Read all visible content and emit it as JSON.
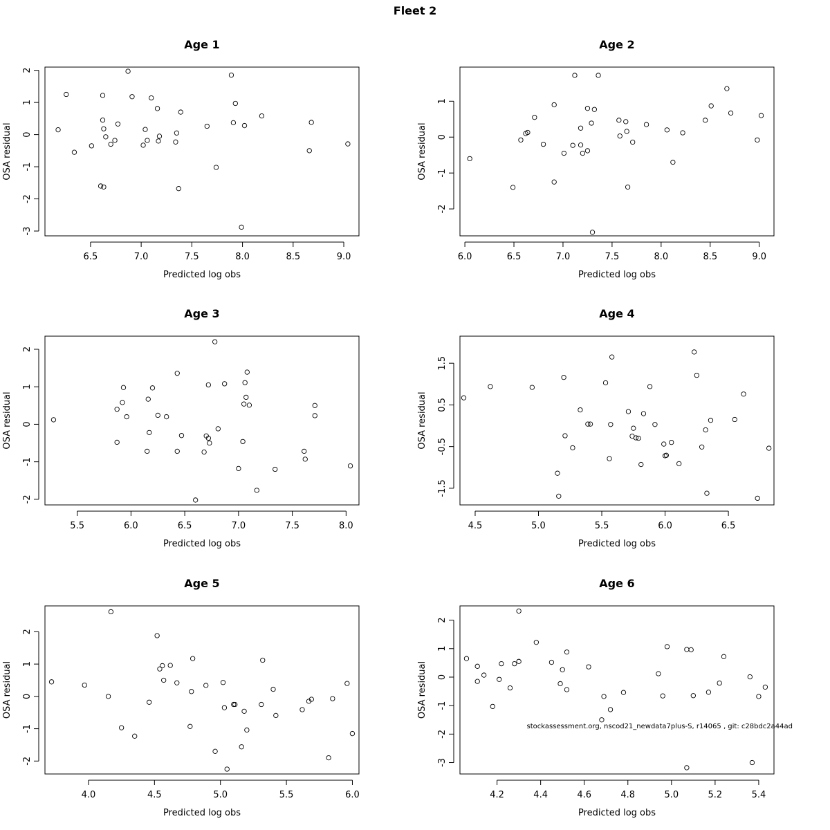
{
  "figure_title": "Fleet 2",
  "footnote": "stockassessment.org, nscod21_newdata7plus-S, r14065 , git: c28bdc2a44ad",
  "chart_data": [
    {
      "type": "scatter",
      "title": "Age 1",
      "xlabel": "Predicted log obs",
      "ylabel": "OSA residual",
      "xlim": [
        6.05,
        9.15
      ],
      "ylim": [
        -3.15,
        2.1
      ],
      "xticks": [
        6.5,
        7.0,
        7.5,
        8.0,
        8.5,
        9.0
      ],
      "xtick_labels": [
        "6.5",
        "7.0",
        "7.5",
        "8.0",
        "8.5",
        "9.0"
      ],
      "yticks": [
        -3,
        -2,
        -1,
        0,
        1,
        2
      ],
      "ytick_labels": [
        "-3",
        "-2",
        "-1",
        "0",
        "1",
        "2"
      ],
      "x": [
        6.18,
        6.26,
        6.34,
        6.51,
        6.6,
        6.62,
        6.62,
        6.63,
        6.63,
        6.65,
        6.7,
        6.74,
        6.77,
        6.87,
        6.91,
        7.02,
        7.04,
        7.06,
        7.1,
        7.16,
        7.17,
        7.18,
        7.34,
        7.35,
        7.37,
        7.39,
        7.65,
        7.74,
        7.89,
        7.91,
        7.93,
        7.99,
        8.02,
        8.19,
        8.66,
        8.68,
        9.04
      ],
      "y": [
        0.15,
        1.25,
        -0.55,
        -0.35,
        -1.6,
        1.22,
        0.45,
        0.18,
        -1.63,
        -0.07,
        -0.3,
        -0.18,
        0.33,
        1.97,
        1.18,
        -0.33,
        0.16,
        -0.18,
        1.14,
        0.81,
        -0.2,
        -0.05,
        -0.23,
        0.05,
        -1.68,
        0.7,
        0.26,
        -1.02,
        1.85,
        0.37,
        0.97,
        -2.88,
        0.28,
        0.58,
        -0.5,
        0.38,
        -0.29
      ]
    },
    {
      "type": "scatter",
      "title": "Age 2",
      "xlabel": "Predicted log obs",
      "ylabel": "OSA residual",
      "xlim": [
        5.95,
        9.15
      ],
      "ylim": [
        -2.75,
        1.95
      ],
      "xticks": [
        6.0,
        6.5,
        7.0,
        7.5,
        8.0,
        8.5,
        9.0
      ],
      "xtick_labels": [
        "6.0",
        "6.5",
        "7.0",
        "7.5",
        "8.0",
        "8.5",
        "9.0"
      ],
      "yticks": [
        -2,
        -1,
        0,
        1
      ],
      "ytick_labels": [
        "-2",
        "-1",
        "0",
        "1"
      ],
      "x": [
        6.05,
        6.49,
        6.57,
        6.62,
        6.64,
        6.71,
        6.8,
        6.91,
        6.91,
        7.01,
        7.1,
        7.12,
        7.18,
        7.18,
        7.2,
        7.25,
        7.25,
        7.29,
        7.3,
        7.32,
        7.36,
        7.57,
        7.58,
        7.64,
        7.65,
        7.66,
        7.71,
        7.85,
        8.06,
        8.12,
        8.22,
        8.45,
        8.51,
        8.67,
        8.71,
        8.98,
        9.02
      ],
      "y": [
        -0.6,
        -1.4,
        -0.08,
        0.1,
        0.13,
        0.55,
        -0.2,
        0.9,
        -1.25,
        -0.45,
        -0.23,
        1.72,
        0.25,
        -0.22,
        -0.45,
        0.8,
        -0.38,
        0.39,
        -2.65,
        0.77,
        1.72,
        0.47,
        0.03,
        0.43,
        0.16,
        -1.39,
        -0.14,
        0.35,
        0.2,
        -0.7,
        0.12,
        0.47,
        0.87,
        1.35,
        0.67,
        -0.08,
        0.6
      ]
    },
    {
      "type": "scatter",
      "title": "Age 3",
      "xlabel": "Predicted log obs",
      "ylabel": "OSA residual",
      "xlim": [
        5.2,
        8.12
      ],
      "ylim": [
        -2.15,
        2.35
      ],
      "xticks": [
        5.5,
        6.0,
        6.5,
        7.0,
        7.5,
        8.0
      ],
      "xtick_labels": [
        "5.5",
        "6.0",
        "6.5",
        "7.0",
        "7.5",
        "8.0"
      ],
      "yticks": [
        -2,
        -1,
        0,
        1,
        2
      ],
      "ytick_labels": [
        "-2",
        "-1",
        "0",
        "1",
        "2"
      ],
      "x": [
        5.28,
        5.87,
        5.87,
        5.92,
        5.93,
        5.96,
        6.15,
        6.16,
        6.17,
        6.2,
        6.25,
        6.33,
        6.43,
        6.43,
        6.47,
        6.6,
        6.68,
        6.7,
        6.72,
        6.72,
        6.73,
        6.78,
        6.81,
        6.87,
        7.0,
        7.04,
        7.05,
        7.06,
        7.07,
        7.08,
        7.1,
        7.17,
        7.34,
        7.61,
        7.62,
        7.71,
        7.71,
        8.04
      ],
      "y": [
        0.12,
        0.4,
        -0.48,
        0.58,
        0.98,
        0.2,
        -0.72,
        0.67,
        -0.22,
        0.97,
        0.24,
        0.2,
        -0.72,
        1.36,
        -0.3,
        -2.02,
        -0.74,
        -0.31,
        -0.37,
        1.05,
        -0.5,
        2.2,
        -0.12,
        1.08,
        -1.18,
        -0.46,
        0.54,
        1.11,
        0.72,
        1.39,
        0.51,
        -1.76,
        -1.2,
        -0.72,
        -0.93,
        0.5,
        0.23,
        -1.11
      ]
    },
    {
      "type": "scatter",
      "title": "Age 4",
      "xlabel": "Predicted log obs",
      "ylabel": "OSA residual",
      "xlim": [
        4.38,
        6.86
      ],
      "ylim": [
        -1.9,
        2.15
      ],
      "xticks": [
        4.5,
        5.0,
        5.5,
        6.0,
        6.5
      ],
      "xtick_labels": [
        "4.5",
        "5.0",
        "5.5",
        "6.0",
        "6.5"
      ],
      "yticks": [
        -1.5,
        -0.5,
        0.5,
        1.5
      ],
      "ytick_labels": [
        "-1.5",
        "-0.5",
        "0.5",
        "1.5"
      ],
      "x": [
        4.41,
        4.62,
        4.95,
        5.15,
        5.16,
        5.2,
        5.21,
        5.27,
        5.33,
        5.39,
        5.41,
        5.53,
        5.56,
        5.57,
        5.58,
        5.71,
        5.74,
        5.75,
        5.77,
        5.79,
        5.81,
        5.83,
        5.88,
        5.92,
        5.99,
        6.0,
        6.01,
        6.05,
        6.11,
        6.23,
        6.25,
        6.29,
        6.32,
        6.33,
        6.36,
        6.55,
        6.62,
        6.73,
        6.82
      ],
      "y": [
        0.67,
        0.94,
        0.92,
        -1.14,
        -1.69,
        1.16,
        -0.24,
        -0.53,
        0.38,
        0.04,
        0.04,
        1.03,
        -0.79,
        0.03,
        1.65,
        0.34,
        -0.25,
        -0.06,
        -0.29,
        -0.3,
        -0.93,
        0.29,
        0.94,
        0.03,
        -0.44,
        -0.72,
        -0.71,
        -0.4,
        -0.91,
        1.77,
        1.21,
        -0.51,
        -0.1,
        -1.62,
        0.13,
        0.15,
        0.76,
        -1.74,
        -0.54
      ]
    },
    {
      "type": "scatter",
      "title": "Age 5",
      "xlabel": "Predicted log obs",
      "ylabel": "OSA residual",
      "xlim": [
        3.67,
        6.05
      ],
      "ylim": [
        -2.4,
        2.8
      ],
      "xticks": [
        4.0,
        4.5,
        5.0,
        5.5,
        6.0
      ],
      "xtick_labels": [
        "4.0",
        "4.5",
        "5.0",
        "5.5",
        "6.0"
      ],
      "yticks": [
        -2,
        -1,
        0,
        1,
        2
      ],
      "ytick_labels": [
        "-2",
        "-1",
        "0",
        "1",
        "2"
      ],
      "x": [
        3.72,
        3.97,
        4.15,
        4.17,
        4.25,
        4.35,
        4.46,
        4.52,
        4.54,
        4.56,
        4.57,
        4.62,
        4.67,
        4.77,
        4.78,
        4.79,
        4.89,
        4.96,
        5.02,
        5.03,
        5.05,
        5.1,
        5.11,
        5.16,
        5.18,
        5.2,
        5.31,
        5.32,
        5.4,
        5.42,
        5.62,
        5.67,
        5.69,
        5.82,
        5.85,
        5.96,
        6.0
      ],
      "y": [
        0.45,
        0.35,
        0.0,
        2.62,
        -0.97,
        -1.23,
        -0.18,
        1.88,
        0.85,
        0.95,
        0.5,
        0.96,
        0.42,
        -0.93,
        0.15,
        1.17,
        0.34,
        -1.7,
        0.43,
        -0.35,
        -2.25,
        -0.25,
        -0.25,
        -1.56,
        -0.46,
        -1.04,
        -0.25,
        1.12,
        0.22,
        -0.59,
        -0.41,
        -0.15,
        -0.09,
        -1.9,
        -0.07,
        0.4,
        -1.15
      ]
    },
    {
      "type": "scatter",
      "title": "Age 6",
      "xlabel": "Predicted log obs",
      "ylabel": "OSA residual",
      "xlim": [
        4.03,
        5.47
      ],
      "ylim": [
        -3.4,
        2.5
      ],
      "xticks": [
        4.2,
        4.4,
        4.6,
        4.8,
        5.0,
        5.2,
        5.4
      ],
      "xtick_labels": [
        "4.2",
        "4.4",
        "4.6",
        "4.8",
        "5.0",
        "5.2",
        "5.4"
      ],
      "yticks": [
        -3,
        -2,
        -1,
        0,
        1,
        2
      ],
      "ytick_labels": [
        "-3",
        "-2",
        "-1",
        "0",
        "1",
        "2"
      ],
      "x": [
        4.06,
        4.11,
        4.11,
        4.14,
        4.18,
        4.21,
        4.22,
        4.26,
        4.28,
        4.3,
        4.3,
        4.38,
        4.45,
        4.49,
        4.5,
        4.52,
        4.52,
        4.62,
        4.68,
        4.69,
        4.72,
        4.78,
        4.94,
        4.96,
        4.98,
        5.07,
        5.07,
        5.09,
        5.1,
        5.17,
        5.22,
        5.24,
        5.36,
        5.37,
        5.4,
        5.43
      ],
      "y": [
        0.65,
        0.38,
        -0.15,
        0.07,
        -1.03,
        -0.08,
        0.47,
        -0.38,
        0.47,
        0.55,
        2.32,
        1.22,
        0.52,
        -0.23,
        0.26,
        0.88,
        -0.44,
        0.36,
        -1.5,
        -0.68,
        -1.14,
        -0.54,
        0.12,
        -0.66,
        1.07,
        -3.18,
        0.97,
        0.96,
        -0.65,
        -0.53,
        -0.21,
        0.72,
        0.01,
        -3.0,
        -0.68,
        -0.35
      ]
    }
  ]
}
